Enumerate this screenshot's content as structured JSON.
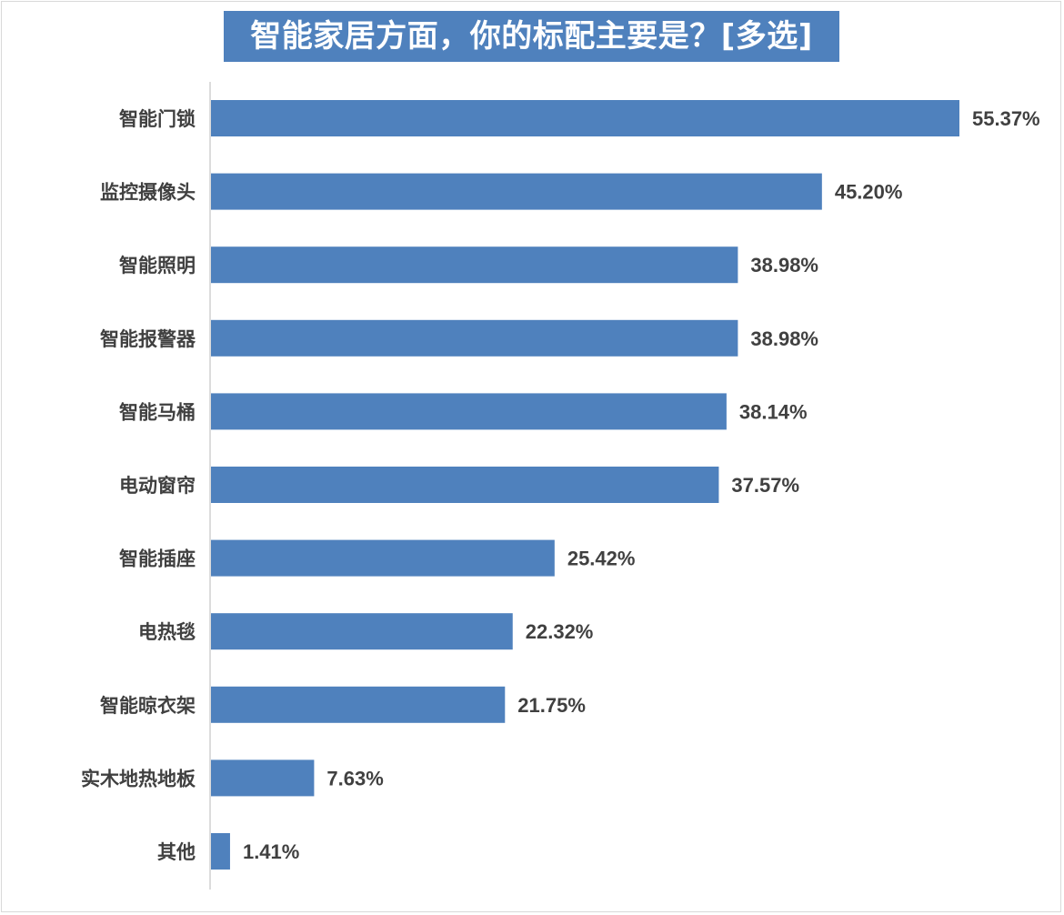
{
  "chart_data": {
    "type": "bar",
    "orientation": "horizontal",
    "title": "智能家居方面，你的标配主要是？[多选]",
    "categories": [
      "智能门锁",
      "监控摄像头",
      "智能照明",
      "智能报警器",
      "智能马桶",
      "电动窗帘",
      "智能插座",
      "电热毯",
      "智能晾衣架",
      "实木地热地板",
      "其他"
    ],
    "values": [
      55.37,
      45.2,
      38.98,
      38.98,
      38.14,
      37.57,
      25.42,
      22.32,
      21.75,
      7.63,
      1.41
    ],
    "value_labels": [
      "55.37%",
      "45.20%",
      "38.98%",
      "38.98%",
      "38.14%",
      "37.57%",
      "25.42%",
      "22.32%",
      "21.75%",
      "7.63%",
      "1.41%"
    ],
    "unit": "%",
    "bar_color": "#4f81bd",
    "title_background": "#4f81bd",
    "grid": false,
    "legend": "none"
  }
}
